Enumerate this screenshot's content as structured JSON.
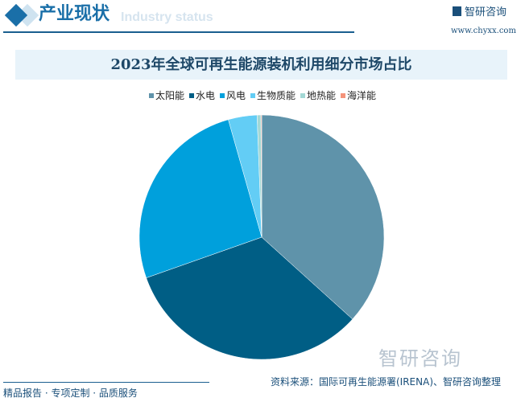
{
  "header": {
    "title": "产业现状",
    "subtitle": "Industry status",
    "logo": "智研咨询",
    "url": "www.chyxx.com"
  },
  "chart_data": {
    "type": "pie",
    "title": "2023年全球可再生能源装机利用细分市场占比",
    "categories": [
      "太阳能",
      "水电",
      "风电",
      "生物质能",
      "地热能",
      "海洋能"
    ],
    "values": [
      36.7,
      32.9,
      26.0,
      3.8,
      0.5,
      0.1
    ],
    "unit": "%",
    "colors": [
      "#5f93aa",
      "#005e85",
      "#00a0dc",
      "#63cdf5",
      "#a3d8d5",
      "#f4937a"
    ],
    "legend_position": "top"
  },
  "footer": {
    "tagline": "精品报告 · 专项定制 · 品质服务",
    "source": "资料来源：国际可再生能源署(IRENA)、智研咨询整理",
    "watermark": "智研咨询"
  }
}
